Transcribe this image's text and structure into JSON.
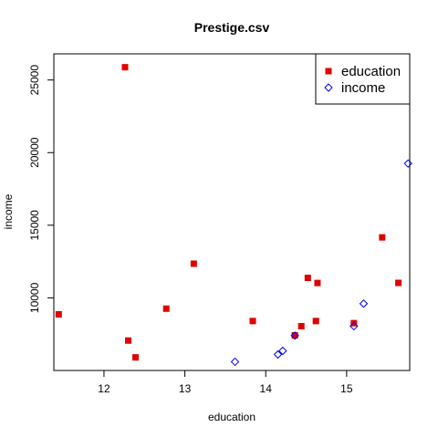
{
  "chart_data": {
    "type": "scatter",
    "title": "Prestige.csv",
    "xlabel": "education",
    "ylabel": "income",
    "xlim": [
      11.38,
      15.78
    ],
    "ylim": [
      5000,
      26800
    ],
    "x_ticks": [
      12,
      13,
      14,
      15
    ],
    "y_ticks": [
      10000,
      15000,
      20000,
      25000
    ],
    "legend_position": "top-right",
    "series": [
      {
        "name": "education",
        "marker": "filled-square",
        "color": "#e00000",
        "points": [
          {
            "x": 11.44,
            "y": 8865
          },
          {
            "x": 12.26,
            "y": 25879
          },
          {
            "x": 12.3,
            "y": 7059
          },
          {
            "x": 12.39,
            "y": 5902
          },
          {
            "x": 12.77,
            "y": 9255
          },
          {
            "x": 13.11,
            "y": 12351
          },
          {
            "x": 13.84,
            "y": 8403
          },
          {
            "x": 14.36,
            "y": 7420
          },
          {
            "x": 14.44,
            "y": 8049
          },
          {
            "x": 14.52,
            "y": 11377
          },
          {
            "x": 14.62,
            "y": 8403
          },
          {
            "x": 14.64,
            "y": 11023
          },
          {
            "x": 15.09,
            "y": 8258
          },
          {
            "x": 15.44,
            "y": 14163
          },
          {
            "x": 15.64,
            "y": 11030
          }
        ]
      },
      {
        "name": "income",
        "marker": "open-diamond",
        "color": "#0000ee",
        "points": [
          {
            "x": 13.62,
            "y": 5600
          },
          {
            "x": 14.15,
            "y": 6100
          },
          {
            "x": 14.21,
            "y": 6350
          },
          {
            "x": 14.36,
            "y": 7400
          },
          {
            "x": 15.09,
            "y": 8050
          },
          {
            "x": 15.21,
            "y": 9600
          },
          {
            "x": 15.76,
            "y": 19250
          }
        ]
      }
    ]
  }
}
